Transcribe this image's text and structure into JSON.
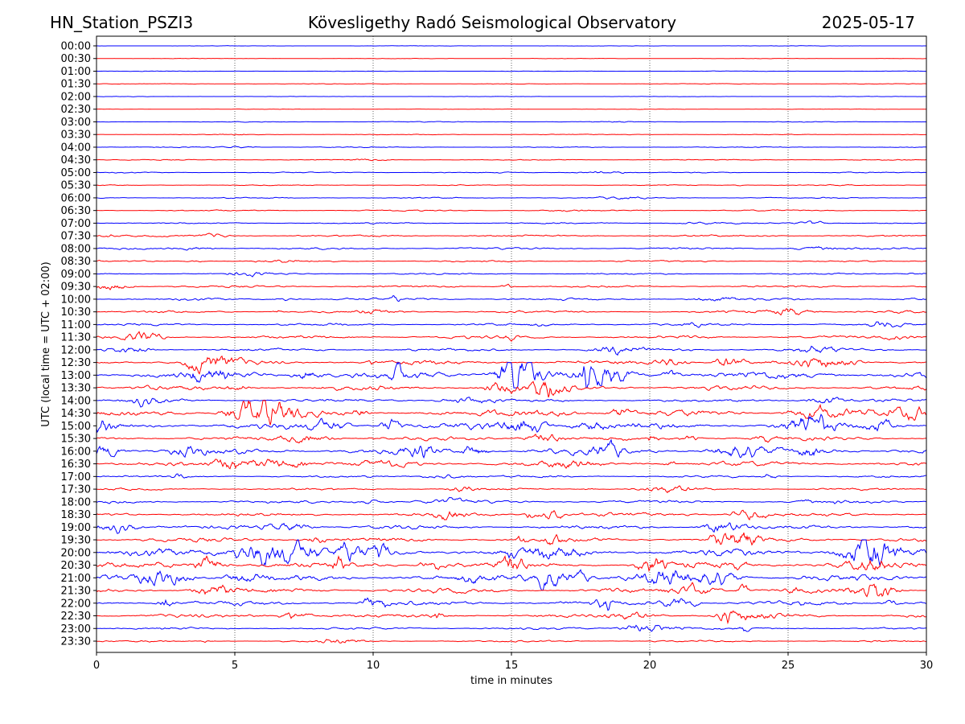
{
  "chart_data": {
    "type": "line",
    "title_left": "HN_Station_PSZI3",
    "title_center": "Kövesligethy Radó Seismological Observatory",
    "title_right": "2025-05-17",
    "xlabel": "time in minutes",
    "ylabel": "UTC (local time = UTC + 02:00)",
    "xlim": [
      0,
      30
    ],
    "xticks": [
      "0",
      "5",
      "10",
      "15",
      "20",
      "25",
      "30"
    ],
    "xtick_values": [
      0,
      5,
      10,
      15,
      20,
      25,
      30
    ],
    "grid": "vertical dotted at x ticks",
    "series_colors": [
      "#0000ff",
      "#ff0000"
    ],
    "rows": [
      {
        "label": "00:00",
        "amp": 0.3
      },
      {
        "label": "00:30",
        "amp": 0.3
      },
      {
        "label": "01:00",
        "amp": 0.4
      },
      {
        "label": "01:30",
        "amp": 0.4
      },
      {
        "label": "02:00",
        "amp": 0.3
      },
      {
        "label": "02:30",
        "amp": 0.3
      },
      {
        "label": "03:00",
        "amp": 0.5
      },
      {
        "label": "03:30",
        "amp": 0.5
      },
      {
        "label": "04:00",
        "amp": 0.6
      },
      {
        "label": "04:30",
        "amp": 0.7
      },
      {
        "label": "05:00",
        "amp": 0.7
      },
      {
        "label": "05:30",
        "amp": 0.6
      },
      {
        "label": "06:00",
        "amp": 0.8
      },
      {
        "label": "06:30",
        "amp": 0.9
      },
      {
        "label": "07:00",
        "amp": 1.0
      },
      {
        "label": "07:30",
        "amp": 1.3
      },
      {
        "label": "08:00",
        "amp": 1.3
      },
      {
        "label": "08:30",
        "amp": 1.1
      },
      {
        "label": "09:00",
        "amp": 1.0
      },
      {
        "label": "09:30",
        "amp": 1.5
      },
      {
        "label": "10:00",
        "amp": 1.6
      },
      {
        "label": "10:30",
        "amp": 1.6
      },
      {
        "label": "11:00",
        "amp": 1.6
      },
      {
        "label": "11:30",
        "amp": 2.0
      },
      {
        "label": "12:00",
        "amp": 2.0
      },
      {
        "label": "12:30",
        "amp": 3.0
      },
      {
        "label": "13:00",
        "amp": 5.0
      },
      {
        "label": "13:30",
        "amp": 3.0
      },
      {
        "label": "14:00",
        "amp": 2.0
      },
      {
        "label": "14:30",
        "amp": 4.0
      },
      {
        "label": "15:00",
        "amp": 4.0
      },
      {
        "label": "15:30",
        "amp": 2.5
      },
      {
        "label": "16:00",
        "amp": 4.0
      },
      {
        "label": "16:30",
        "amp": 3.0
      },
      {
        "label": "17:00",
        "amp": 1.5
      },
      {
        "label": "17:30",
        "amp": 1.5
      },
      {
        "label": "18:00",
        "amp": 2.0
      },
      {
        "label": "18:30",
        "amp": 2.5
      },
      {
        "label": "19:00",
        "amp": 2.5
      },
      {
        "label": "19:30",
        "amp": 3.0
      },
      {
        "label": "20:00",
        "amp": 5.0
      },
      {
        "label": "20:30",
        "amp": 4.0
      },
      {
        "label": "21:00",
        "amp": 4.0
      },
      {
        "label": "21:30",
        "amp": 3.0
      },
      {
        "label": "22:00",
        "amp": 3.0
      },
      {
        "label": "22:30",
        "amp": 2.5
      },
      {
        "label": "23:00",
        "amp": 1.5
      },
      {
        "label": "23:30",
        "amp": 1.2
      }
    ]
  }
}
